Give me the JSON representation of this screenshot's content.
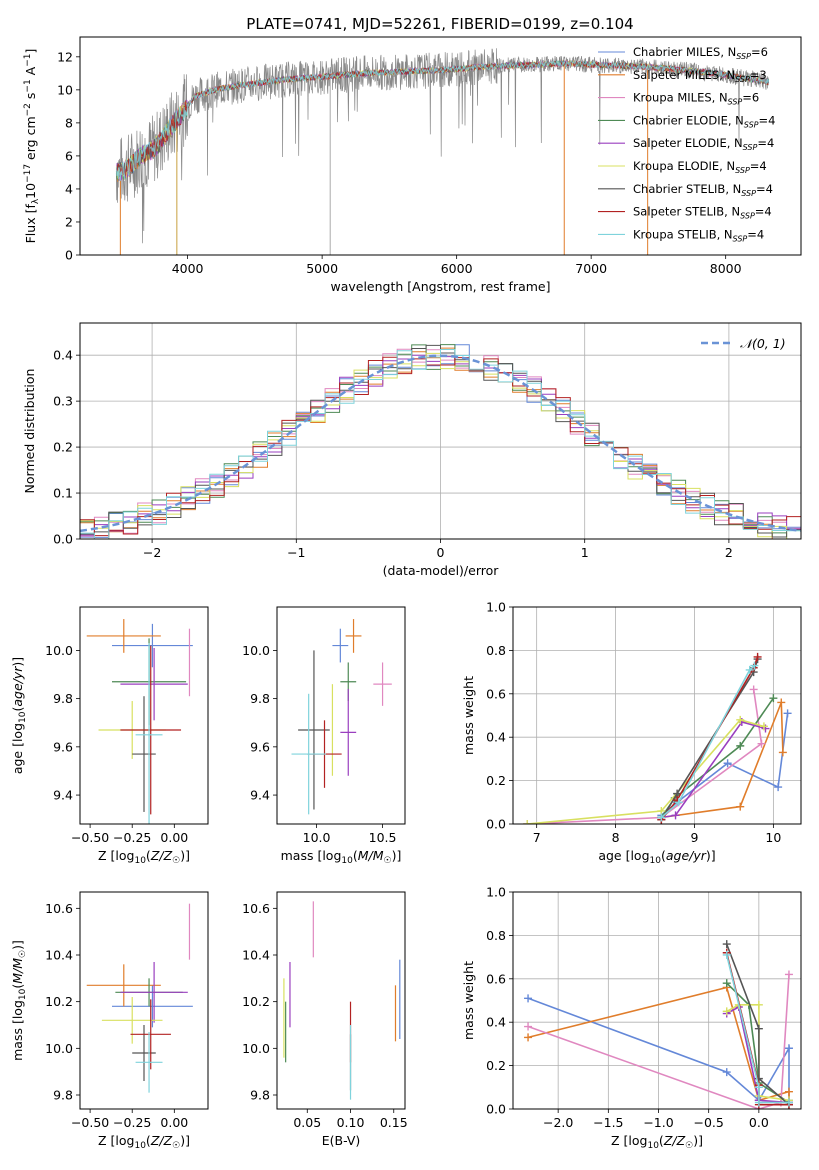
{
  "figure_title": "PLATE=0741, MJD=52261, FIBERID=0199, z=0.104",
  "colors": {
    "Chabrier MILES": "#6488d8",
    "Salpeter MILES": "#e07d2b",
    "Kroupa MILES": "#e088c0",
    "Chabrier ELODIE": "#4e8a55",
    "Salpeter ELODIE": "#9a3fbf",
    "Kroupa ELODIE": "#d8e060",
    "Chabrier STELIB": "#555555",
    "Salpeter STELIB": "#b22222",
    "Kroupa STELIB": "#7fd3dc",
    "gaussian": "#6a93d6",
    "spectrum_gray": "#888888"
  },
  "chart_data": [
    {
      "type": "line",
      "id": "spectrum",
      "title": "PLATE=0741, MJD=52261, FIBERID=0199, z=0.104",
      "xlabel": "wavelength [Angstrom, rest frame]",
      "ylabel": "Flux [fλ10⁻¹⁷ erg cm⁻² s⁻¹ A⁻¹]",
      "xlim": [
        3200,
        8560
      ],
      "ylim": [
        0,
        13.2
      ],
      "xticks": [
        4000,
        5000,
        6000,
        7000,
        8000
      ],
      "yticks": [
        0,
        2,
        4,
        6,
        8,
        10,
        12
      ],
      "legend": {
        "placement": "right",
        "entries": [
          "Chabrier MILES, N_SSP=6",
          "Salpeter MILES, N_SSP=3",
          "Kroupa MILES, N_SSP=6",
          "Chabrier ELODIE, N_SSP=4",
          "Salpeter ELODIE, N_SSP=4",
          "Kroupa ELODIE, N_SSP=4",
          "Chabrier STELIB, N_SSP=4",
          "Salpeter STELIB, N_SSP=4",
          "Kroupa STELIB, N_SSP=4"
        ]
      },
      "continuum": {
        "x": [
          3470,
          3550,
          3650,
          3750,
          3850,
          3950,
          4050,
          4200,
          4400,
          4700,
          5000,
          5300,
          5600,
          5900,
          6200,
          6500,
          6800,
          7100,
          7400,
          7700,
          8000,
          8300
        ],
        "y": [
          5.0,
          5.2,
          6.0,
          6.4,
          7.5,
          8.5,
          9.6,
          10.0,
          10.3,
          10.6,
          10.8,
          11.0,
          11.1,
          11.2,
          11.4,
          11.5,
          11.6,
          11.5,
          11.4,
          11.2,
          10.9,
          10.5
        ]
      },
      "spikes_down": [
        3500,
        3920,
        5060,
        6800,
        7420
      ],
      "grey_hi_noise_range": [
        3500,
        6300
      ]
    },
    {
      "type": "histogram",
      "id": "residuals",
      "xlabel": "(data-model)/error",
      "ylabel": "Normed distribution",
      "xlim": [
        -2.5,
        2.5
      ],
      "ylim": [
        0,
        0.47
      ],
      "xticks": [
        -2,
        -1,
        0,
        1,
        2
      ],
      "yticks": [
        0.0,
        0.1,
        0.2,
        0.3,
        0.4
      ],
      "grid": true,
      "legend": {
        "placement": "top-right",
        "entries": [
          "𝒩(0, 1)"
        ]
      },
      "bin_width": 0.1,
      "reference_curve": "gaussian(0,1)"
    },
    {
      "type": "scatter",
      "id": "age_vs_Z",
      "xlabel": "Z [log₁₀(Z/Z☉)]",
      "ylabel": "age  [log₁₀(age/yr)]",
      "xlim": [
        -0.56,
        0.2
      ],
      "ylim": [
        9.28,
        10.18
      ],
      "xticks": [
        -0.5,
        -0.25,
        0.0
      ],
      "xticklabels": [
        "−0.50",
        "−0.25",
        "0.00"
      ],
      "yticks": [
        9.4,
        9.6,
        9.8,
        10.0
      ],
      "points": [
        {
          "model": "Chabrier MILES",
          "x": -0.13,
          "xerr": 0.24,
          "y": 10.02,
          "yerr": 0.09
        },
        {
          "model": "Salpeter MILES",
          "x": -0.3,
          "xerr": 0.22,
          "y": 10.06,
          "yerr": 0.07
        },
        {
          "model": "Kroupa MILES",
          "x": 0.09,
          "xerr": 0.0,
          "y": 9.95,
          "yerr": 0.14
        },
        {
          "model": "Chabrier ELODIE",
          "x": -0.15,
          "xerr": 0.22,
          "y": 9.87,
          "yerr": 0.18
        },
        {
          "model": "Salpeter ELODIE",
          "x": -0.12,
          "xerr": 0.2,
          "y": 9.86,
          "yerr": 0.15
        },
        {
          "model": "Kroupa ELODIE",
          "x": -0.25,
          "xerr": 0.2,
          "y": 9.67,
          "yerr": 0.12
        },
        {
          "model": "Chabrier STELIB",
          "x": -0.18,
          "xerr": 0.07,
          "y": 9.57,
          "yerr": 0.24
        },
        {
          "model": "Salpeter STELIB",
          "x": -0.14,
          "xerr": 0.18,
          "y": 9.67,
          "yerr": 0.35
        },
        {
          "model": "Kroupa STELIB",
          "x": -0.15,
          "xerr": 0.08,
          "y": 9.65,
          "yerr": 0.38
        }
      ]
    },
    {
      "type": "scatter",
      "id": "age_vs_mass",
      "xlabel": "mass [log₁₀(M/M☉)]",
      "xlim": [
        9.7,
        10.67
      ],
      "ylim": [
        9.28,
        10.18
      ],
      "xticks": [
        10.0,
        10.5
      ],
      "xticklabels": [
        "10.0",
        "10.5"
      ],
      "yticks": [
        9.4,
        9.6,
        9.8,
        10.0
      ],
      "points": [
        {
          "model": "Chabrier MILES",
          "x": 10.18,
          "xerr": 0.06,
          "y": 10.02,
          "yerr": 0.07
        },
        {
          "model": "Salpeter MILES",
          "x": 10.28,
          "xerr": 0.06,
          "y": 10.06,
          "yerr": 0.07
        },
        {
          "model": "Kroupa MILES",
          "x": 10.5,
          "xerr": 0.07,
          "y": 9.86,
          "yerr": 0.09
        },
        {
          "model": "Chabrier ELODIE",
          "x": 10.24,
          "xerr": 0.06,
          "y": 9.87,
          "yerr": 0.08
        },
        {
          "model": "Salpeter ELODIE",
          "x": 10.24,
          "xerr": 0.06,
          "y": 9.66,
          "yerr": 0.18
        },
        {
          "model": "Kroupa ELODIE",
          "x": 10.12,
          "xerr": 0.0,
          "y": 9.67,
          "yerr": 0.19
        },
        {
          "model": "Chabrier STELIB",
          "x": 9.98,
          "xerr": 0.12,
          "y": 9.67,
          "yerr": 0.33
        },
        {
          "model": "Salpeter STELIB",
          "x": 10.06,
          "xerr": 0.13,
          "y": 9.57,
          "yerr": 0.14
        },
        {
          "model": "Kroupa STELIB",
          "x": 9.94,
          "xerr": 0.13,
          "y": 9.57,
          "yerr": 0.25
        }
      ]
    },
    {
      "type": "line",
      "id": "massweight_vs_age",
      "xlabel": "age  [log₁₀(age/yr)]",
      "ylabel": "mass weight",
      "xlim": [
        6.7,
        10.35
      ],
      "ylim": [
        0,
        1.0
      ],
      "xticks": [
        7,
        8,
        9,
        10
      ],
      "yticks": [
        0.0,
        0.2,
        0.4,
        0.6,
        0.8,
        1.0
      ],
      "grid": true,
      "series": [
        {
          "model": "Chabrier MILES",
          "x": [
            8.58,
            8.78,
            9.42,
            10.06,
            10.18
          ],
          "y": [
            0.04,
            0.1,
            0.28,
            0.17,
            0.51
          ]
        },
        {
          "model": "Salpeter MILES",
          "x": [
            8.58,
            9.58,
            10.1,
            10.12
          ],
          "y": [
            0.03,
            0.08,
            0.56,
            0.33
          ]
        },
        {
          "model": "Kroupa MILES",
          "x": [
            6.88,
            8.58,
            9.85,
            9.75
          ],
          "y": [
            0.0,
            0.03,
            0.37,
            0.62
          ]
        },
        {
          "model": "Chabrier ELODIE",
          "x": [
            8.58,
            8.75,
            9.58,
            10.0
          ],
          "y": [
            0.03,
            0.12,
            0.36,
            0.58
          ]
        },
        {
          "model": "Salpeter ELODIE",
          "x": [
            8.58,
            8.76,
            9.6,
            9.9
          ],
          "y": [
            0.03,
            0.04,
            0.47,
            0.44
          ]
        },
        {
          "model": "Kroupa ELODIE",
          "x": [
            6.88,
            8.58,
            9.58,
            9.88
          ],
          "y": [
            0.0,
            0.06,
            0.48,
            0.45
          ]
        },
        {
          "model": "Chabrier STELIB",
          "x": [
            8.58,
            8.78,
            9.75,
            9.8
          ],
          "y": [
            0.02,
            0.14,
            0.7,
            0.76
          ]
        },
        {
          "model": "Salpeter STELIB",
          "x": [
            8.58,
            8.78,
            9.75,
            9.8
          ],
          "y": [
            0.02,
            0.11,
            0.72,
            0.77
          ]
        },
        {
          "model": "Kroupa STELIB",
          "x": [
            8.58,
            8.8,
            9.7,
            9.76
          ],
          "y": [
            0.03,
            0.1,
            0.71,
            0.73
          ]
        }
      ]
    },
    {
      "type": "scatter",
      "id": "mass_vs_Z",
      "xlabel": "Z [log₁₀(Z/Z☉)]",
      "ylabel": "mass [log₁₀(M/M☉)]",
      "xlim": [
        -0.56,
        0.2
      ],
      "ylim": [
        9.74,
        10.67
      ],
      "xticks": [
        -0.5,
        -0.25,
        0.0
      ],
      "xticklabels": [
        "−0.50",
        "−0.25",
        "0.00"
      ],
      "yticks": [
        9.8,
        10.0,
        10.2,
        10.4,
        10.6
      ],
      "points": [
        {
          "model": "Chabrier MILES",
          "x": -0.13,
          "xerr": 0.24,
          "y": 10.18,
          "yerr": 0.09
        },
        {
          "model": "Salpeter MILES",
          "x": -0.3,
          "xerr": 0.22,
          "y": 10.27,
          "yerr": 0.09
        },
        {
          "model": "Kroupa MILES",
          "x": 0.09,
          "xerr": 0.0,
          "y": 10.5,
          "yerr": 0.12
        },
        {
          "model": "Chabrier ELODIE",
          "x": -0.15,
          "xerr": 0.2,
          "y": 10.24,
          "yerr": 0.06
        },
        {
          "model": "Salpeter ELODIE",
          "x": -0.12,
          "xerr": 0.2,
          "y": 10.24,
          "yerr": 0.13
        },
        {
          "model": "Kroupa ELODIE",
          "x": -0.25,
          "xerr": 0.18,
          "y": 10.12,
          "yerr": 0.1
        },
        {
          "model": "Chabrier STELIB",
          "x": -0.18,
          "xerr": 0.07,
          "y": 9.98,
          "yerr": 0.12
        },
        {
          "model": "Salpeter STELIB",
          "x": -0.14,
          "xerr": 0.12,
          "y": 10.06,
          "yerr": 0.15
        },
        {
          "model": "Kroupa STELIB",
          "x": -0.15,
          "xerr": 0.08,
          "y": 9.94,
          "yerr": 0.13
        }
      ]
    },
    {
      "type": "scatter",
      "id": "mass_vs_EBV",
      "xlabel": "E(B-V)",
      "xlim": [
        0.015,
        0.163
      ],
      "ylim": [
        9.74,
        10.67
      ],
      "xticks": [
        0.05,
        0.1,
        0.15
      ],
      "xticklabels": [
        "0.05",
        "0.10",
        "0.15"
      ],
      "yticks": [
        9.8,
        10.0,
        10.2,
        10.4,
        10.6
      ],
      "points": [
        {
          "model": "Chabrier MILES",
          "x": 0.157,
          "y": 10.21,
          "yerr": 0.17
        },
        {
          "model": "Salpeter MILES",
          "x": 0.152,
          "y": 10.15,
          "yerr": 0.12
        },
        {
          "model": "Kroupa MILES",
          "x": 0.057,
          "y": 10.51,
          "yerr": 0.12
        },
        {
          "model": "Chabrier ELODIE",
          "x": 0.025,
          "y": 10.07,
          "yerr": 0.13
        },
        {
          "model": "Salpeter ELODIE",
          "x": 0.03,
          "y": 10.23,
          "yerr": 0.14
        },
        {
          "model": "Kroupa ELODIE",
          "x": 0.023,
          "y": 10.13,
          "yerr": 0.17
        },
        {
          "model": "Chabrier STELIB",
          "x": 0.1,
          "y": 9.94,
          "yerr": 0.12
        },
        {
          "model": "Salpeter STELIB",
          "x": 0.1,
          "y": 10.07,
          "yerr": 0.13
        },
        {
          "model": "Kroupa STELIB",
          "x": 0.1,
          "y": 9.94,
          "yerr": 0.16
        }
      ]
    },
    {
      "type": "line",
      "id": "massweight_vs_Z",
      "xlabel": "Z [log₁₀(Z/Z☉)]",
      "ylabel": "mass weight",
      "xlim": [
        -2.45,
        0.42
      ],
      "ylim": [
        0,
        1.0
      ],
      "xticks": [
        -2.0,
        -1.5,
        -1.0,
        -0.5,
        0.0
      ],
      "xticklabels": [
        "−2.0",
        "−1.5",
        "−1.0",
        "−0.5",
        "0.0"
      ],
      "yticks": [
        0.0,
        0.2,
        0.4,
        0.6,
        0.8,
        1.0
      ],
      "grid": true,
      "series": [
        {
          "model": "Chabrier MILES",
          "x": [
            -2.3,
            -0.32,
            0.0,
            0.3,
            0.3
          ],
          "y": [
            0.51,
            0.17,
            0.04,
            0.28,
            0.04
          ]
        },
        {
          "model": "Salpeter MILES",
          "x": [
            -2.3,
            -0.32,
            0.0,
            0.3,
            0.3
          ],
          "y": [
            0.33,
            0.56,
            0.04,
            0.08,
            0.03
          ]
        },
        {
          "model": "Kroupa MILES",
          "x": [
            -2.3,
            0.0,
            0.22,
            0.3
          ],
          "y": [
            0.38,
            0.0,
            0.03,
            0.62
          ]
        },
        {
          "model": "Chabrier ELODIE",
          "x": [
            -0.32,
            -0.1,
            0.0,
            0.3
          ],
          "y": [
            0.58,
            0.48,
            0.12,
            0.03
          ]
        },
        {
          "model": "Salpeter ELODIE",
          "x": [
            -0.32,
            -0.2,
            0.0,
            0.3
          ],
          "y": [
            0.44,
            0.47,
            0.04,
            0.03
          ]
        },
        {
          "model": "Kroupa ELODIE",
          "x": [
            -0.32,
            -0.2,
            0.0,
            0.0,
            0.3
          ],
          "y": [
            0.45,
            0.48,
            0.48,
            0.06,
            0.04
          ]
        },
        {
          "model": "Chabrier STELIB",
          "x": [
            -0.32,
            0.0,
            0.0,
            0.3
          ],
          "y": [
            0.76,
            0.37,
            0.14,
            0.02
          ]
        },
        {
          "model": "Salpeter STELIB",
          "x": [
            -0.32,
            0.0,
            0.0,
            0.3
          ],
          "y": [
            0.72,
            0.11,
            0.02,
            0.02
          ]
        },
        {
          "model": "Kroupa STELIB",
          "x": [
            -0.32,
            0.0,
            0.0,
            0.3
          ],
          "y": [
            0.71,
            0.1,
            0.03,
            0.03
          ]
        }
      ]
    }
  ]
}
